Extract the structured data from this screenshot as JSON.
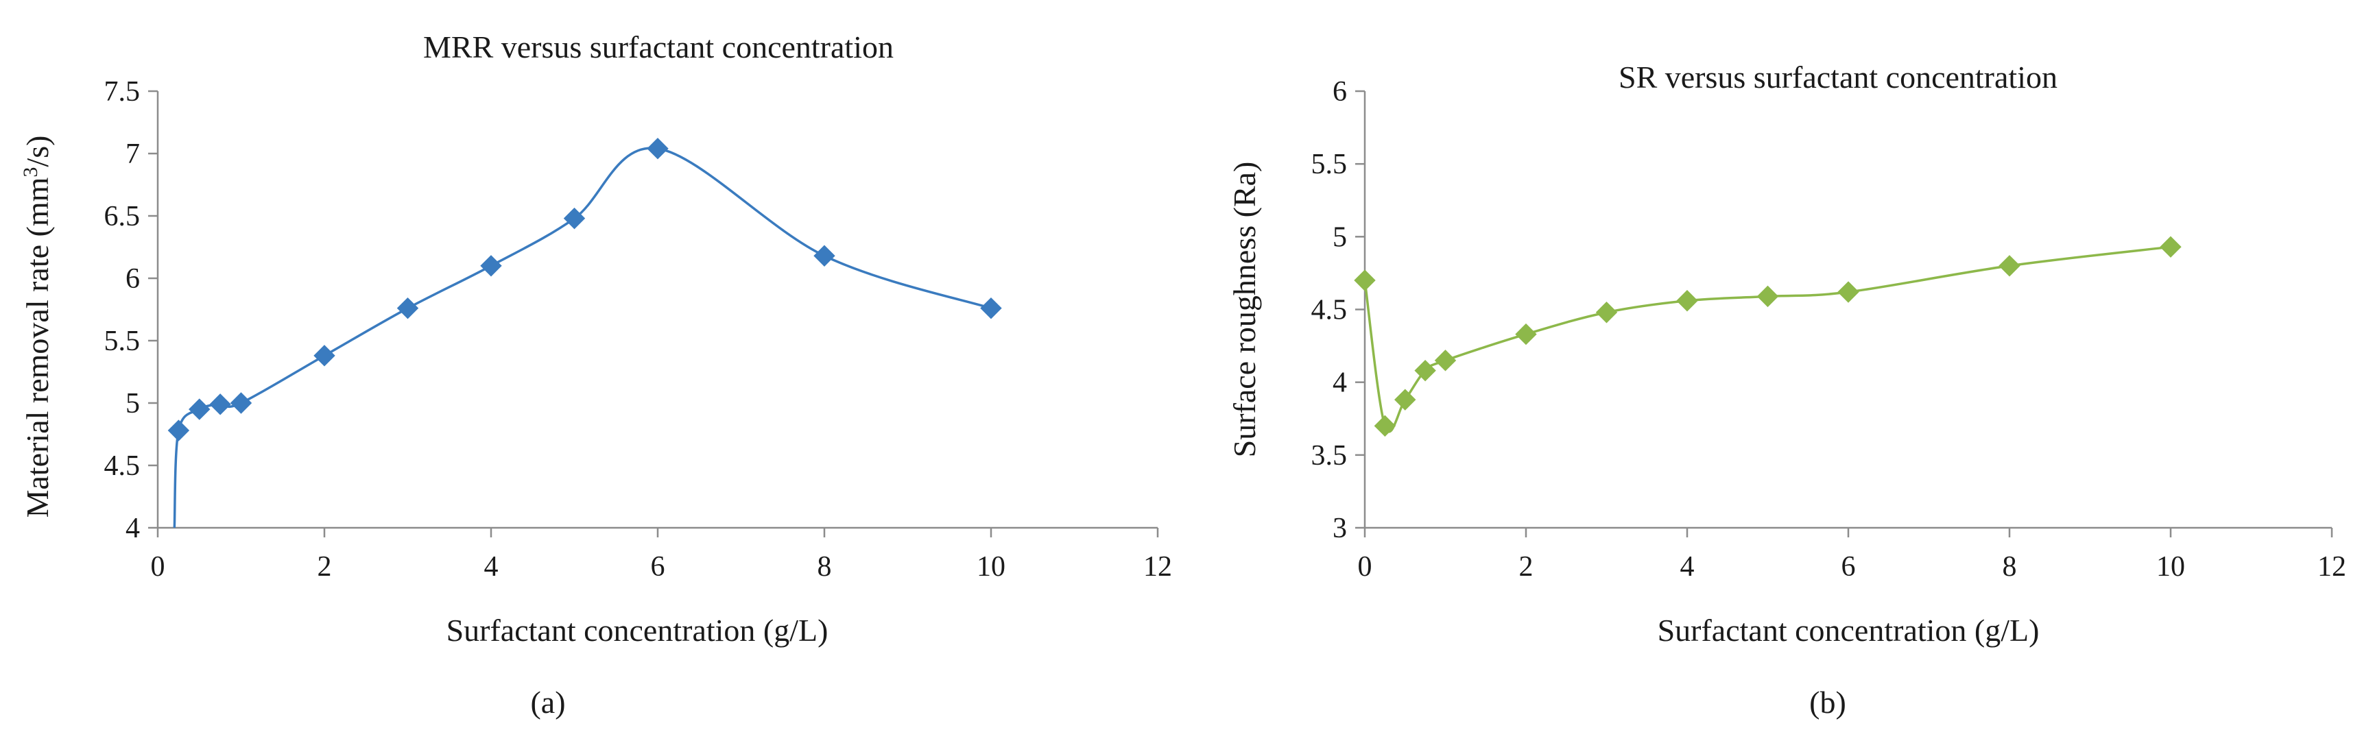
{
  "chart_data": [
    {
      "type": "line",
      "title": "MRR versus surfactant concentration",
      "xlabel": "Surfactant concentration (g/L)",
      "ylabel_main": "Material removal rate (mm",
      "ylabel_sup": "3",
      "ylabel_tail": "/s)",
      "panel": "(a)",
      "xlim": [
        0,
        12
      ],
      "ylim": [
        4,
        7.5
      ],
      "xticks": [
        "0",
        "2",
        "4",
        "6",
        "8",
        "10",
        "12"
      ],
      "yticks": [
        "4",
        "4.5",
        "5",
        "5.5",
        "6",
        "6.5",
        "7",
        "7.5"
      ],
      "color": "#3a7bbf",
      "series": [
        {
          "name": "MRR",
          "x": [
            0.25,
            0.5,
            0.75,
            1,
            2,
            3,
            4,
            5,
            6,
            8,
            10
          ],
          "y": [
            4.78,
            4.95,
            4.99,
            5.0,
            5.38,
            5.76,
            6.1,
            6.48,
            7.04,
            6.18,
            5.76
          ]
        }
      ],
      "line_start": {
        "x": 0.2,
        "y": 4.0
      }
    },
    {
      "type": "line",
      "title": "SR versus surfactant concentration",
      "xlabel": "Surfactant concentration (g/L)",
      "ylabel_main": "Surface roughness (Ra)",
      "ylabel_sup": "",
      "ylabel_tail": "",
      "panel": "(b)",
      "xlim": [
        0,
        12
      ],
      "ylim": [
        3,
        6
      ],
      "xticks": [
        "0",
        "2",
        "4",
        "6",
        "8",
        "10",
        "12"
      ],
      "yticks": [
        "3",
        "3.5",
        "4",
        "4.5",
        "5",
        "5.5",
        "6"
      ],
      "color": "#8db84a",
      "series": [
        {
          "name": "SR",
          "x": [
            0,
            0.25,
            0.5,
            0.75,
            1,
            2,
            3,
            4,
            5,
            6,
            8,
            10
          ],
          "y": [
            4.7,
            3.7,
            3.88,
            4.08,
            4.15,
            4.33,
            4.48,
            4.56,
            4.59,
            4.62,
            4.8,
            4.93
          ]
        }
      ]
    }
  ]
}
